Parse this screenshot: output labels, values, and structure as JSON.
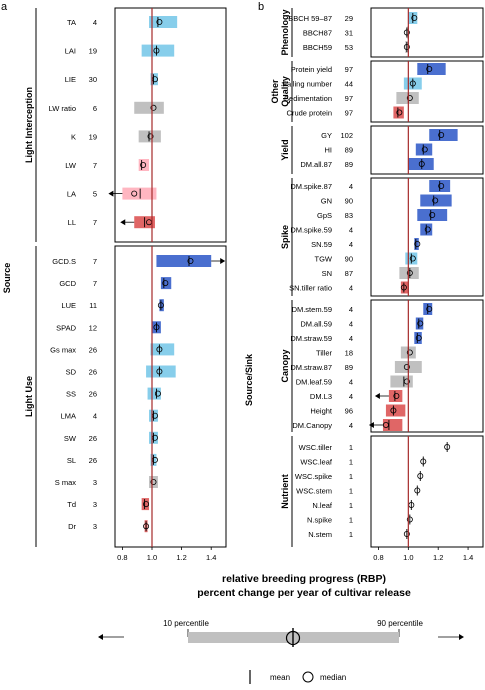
{
  "panels": [
    {
      "letter": "a",
      "source_label": "Source",
      "xticks": [
        "0.8",
        "1.0",
        "1.2",
        "1.4"
      ],
      "xlim": [
        0.75,
        1.5
      ],
      "groups": [
        {
          "label": "Light Interception",
          "rows": [
            {
              "name": "TA",
              "n": "4",
              "p10": 0.98,
              "p90": 1.17,
              "mean": 1.04,
              "median": 1.05,
              "color": "#87ceeb"
            },
            {
              "name": "LAI",
              "n": "19",
              "p10": 0.93,
              "p90": 1.15,
              "mean": 1.03,
              "median": 1.03,
              "color": "#87ceeb"
            },
            {
              "name": "LIE",
              "n": "30",
              "p10": 0.99,
              "p90": 1.04,
              "mean": 1.01,
              "median": 1.02,
              "color": "#87ceeb"
            },
            {
              "name": "LW ratio",
              "n": "6",
              "p10": 0.88,
              "p90": 1.08,
              "mean": 1.0,
              "median": 1.01,
              "color": "#c0c0c0"
            },
            {
              "name": "K",
              "n": "19",
              "p10": 0.91,
              "p90": 1.06,
              "mean": 0.98,
              "median": 0.99,
              "color": "#c0c0c0"
            },
            {
              "name": "LW",
              "n": "7",
              "p10": 0.91,
              "p90": 0.98,
              "mean": 0.93,
              "median": 0.94,
              "color": "#ffb6c1"
            },
            {
              "name": "LA",
              "n": "5",
              "p10": 0.8,
              "p90": 1.03,
              "mean": 0.92,
              "median": 0.88,
              "color": "#ffb6c1",
              "arrow": "left"
            },
            {
              "name": "LL",
              "n": "7",
              "p10": 0.88,
              "p90": 1.02,
              "mean": 0.95,
              "median": 0.98,
              "color": "#e06666",
              "arrow": "left"
            }
          ]
        },
        {
          "label": "Light Use",
          "rows": [
            {
              "name": "GCD.S",
              "n": "7",
              "p10": 1.03,
              "p90": 1.4,
              "mean": 1.25,
              "median": 1.26,
              "color": "#4a6fcf",
              "arrow": "right"
            },
            {
              "name": "GCD",
              "n": "7",
              "p10": 1.06,
              "p90": 1.13,
              "mean": 1.08,
              "median": 1.09,
              "color": "#4a6fcf"
            },
            {
              "name": "LUE",
              "n": "11",
              "p10": 1.05,
              "p90": 1.08,
              "mean": 1.06,
              "median": 1.06,
              "color": "#4a6fcf"
            },
            {
              "name": "SPAD",
              "n": "12",
              "p10": 1.0,
              "p90": 1.06,
              "mean": 1.03,
              "median": 1.03,
              "color": "#4a6fcf"
            },
            {
              "name": "Gs max",
              "n": "26",
              "p10": 0.99,
              "p90": 1.15,
              "mean": 1.05,
              "median": 1.05,
              "color": "#87ceeb"
            },
            {
              "name": "SD",
              "n": "26",
              "p10": 0.96,
              "p90": 1.16,
              "mean": 1.05,
              "median": 1.05,
              "color": "#87ceeb"
            },
            {
              "name": "SS",
              "n": "26",
              "p10": 0.97,
              "p90": 1.06,
              "mean": 1.03,
              "median": 1.04,
              "color": "#87ceeb"
            },
            {
              "name": "LMA",
              "n": "4",
              "p10": 0.98,
              "p90": 1.04,
              "mean": 1.01,
              "median": 1.02,
              "color": "#87ceeb"
            },
            {
              "name": "SW",
              "n": "26",
              "p10": 0.98,
              "p90": 1.04,
              "mean": 1.01,
              "median": 1.02,
              "color": "#87ceeb"
            },
            {
              "name": "SL",
              "n": "26",
              "p10": 0.99,
              "p90": 1.03,
              "mean": 1.01,
              "median": 1.02,
              "color": "#87ceeb"
            },
            {
              "name": "S max",
              "n": "3",
              "p10": 0.98,
              "p90": 1.04,
              "mean": 1.0,
              "median": 1.01,
              "color": "#c0c0c0"
            },
            {
              "name": "Td",
              "n": "3",
              "p10": 0.93,
              "p90": 0.98,
              "mean": 0.95,
              "median": 0.96,
              "color": "#e06666"
            },
            {
              "name": "Dr",
              "n": "3",
              "p10": 0.95,
              "p90": 0.97,
              "mean": 0.96,
              "median": 0.96,
              "color": "#e06666"
            }
          ]
        }
      ]
    },
    {
      "letter": "b",
      "source_label": "Source/Sink",
      "xticks": [
        "0.8",
        "1.0",
        "1.2",
        "1.4"
      ],
      "xlim": [
        0.75,
        1.5
      ],
      "groups": [
        {
          "label": "Phenology",
          "rows": [
            {
              "name": "BBCH 59–87",
              "n": "29",
              "p10": 1.0,
              "p90": 1.06,
              "mean": 1.03,
              "median": 1.04,
              "color": "#87ceeb"
            },
            {
              "name": "BBCH87",
              "n": "31",
              "p10": 0.99,
              "p90": 1.0,
              "mean": 0.99,
              "median": 0.99,
              "color": "#c0c0c0"
            },
            {
              "name": "BBCH59",
              "n": "53",
              "p10": 0.98,
              "p90": 0.995,
              "mean": 0.99,
              "median": 0.99,
              "color": "#c0c0c0"
            }
          ]
        },
        {
          "label": "Other Quality",
          "rows": [
            {
              "name": "Protein yield",
              "n": "97",
              "p10": 1.06,
              "p90": 1.25,
              "mean": 1.13,
              "median": 1.14,
              "color": "#4a6fcf"
            },
            {
              "name": "Falling number",
              "n": "44",
              "p10": 0.97,
              "p90": 1.09,
              "mean": 1.03,
              "median": 1.03,
              "color": "#87ceeb"
            },
            {
              "name": "Sedimentation",
              "n": "97",
              "p10": 0.92,
              "p90": 1.07,
              "mean": 1.0,
              "median": 1.01,
              "color": "#c0c0c0"
            },
            {
              "name": "Crude protein",
              "n": "97",
              "p10": 0.9,
              "p90": 0.97,
              "mean": 0.93,
              "median": 0.94,
              "color": "#e06666"
            }
          ]
        },
        {
          "label": "Yield",
          "rows": [
            {
              "name": "GY",
              "n": "102",
              "p10": 1.14,
              "p90": 1.33,
              "mean": 1.21,
              "median": 1.22,
              "color": "#4a6fcf"
            },
            {
              "name": "HI",
              "n": "89",
              "p10": 1.05,
              "p90": 1.16,
              "mean": 1.1,
              "median": 1.11,
              "color": "#4a6fcf"
            },
            {
              "name": "DM.all.87",
              "n": "89",
              "p10": 1.0,
              "p90": 1.17,
              "mean": 1.09,
              "median": 1.09,
              "color": "#4a6fcf"
            }
          ]
        },
        {
          "label": "Spike",
          "rows": [
            {
              "name": "DM.spike.87",
              "n": "4",
              "p10": 1.14,
              "p90": 1.28,
              "mean": 1.21,
              "median": 1.22,
              "color": "#4a6fcf"
            },
            {
              "name": "GN",
              "n": "90",
              "p10": 1.08,
              "p90": 1.29,
              "mean": 1.17,
              "median": 1.18,
              "color": "#4a6fcf"
            },
            {
              "name": "GpS",
              "n": "83",
              "p10": 1.06,
              "p90": 1.26,
              "mean": 1.15,
              "median": 1.16,
              "color": "#4a6fcf"
            },
            {
              "name": "DM.spike.59",
              "n": "4",
              "p10": 1.08,
              "p90": 1.16,
              "mean": 1.12,
              "median": 1.13,
              "color": "#4a6fcf"
            },
            {
              "name": "SN.59",
              "n": "4",
              "p10": 1.04,
              "p90": 1.07,
              "mean": 1.05,
              "median": 1.06,
              "color": "#4a6fcf"
            },
            {
              "name": "TGW",
              "n": "90",
              "p10": 0.98,
              "p90": 1.06,
              "mean": 1.02,
              "median": 1.03,
              "color": "#87ceeb"
            },
            {
              "name": "SN",
              "n": "87",
              "p10": 0.94,
              "p90": 1.07,
              "mean": 1.01,
              "median": 1.01,
              "color": "#c0c0c0"
            },
            {
              "name": "SN.tiller ratio",
              "n": "4",
              "p10": 0.95,
              "p90": 1.0,
              "mean": 0.97,
              "median": 0.97,
              "color": "#e06666"
            }
          ]
        },
        {
          "label": "Canopy",
          "rows": [
            {
              "name": "DM.stem.59",
              "n": "4",
              "p10": 1.1,
              "p90": 1.16,
              "mean": 1.13,
              "median": 1.14,
              "color": "#4a6fcf"
            },
            {
              "name": "DM.all.59",
              "n": "4",
              "p10": 1.05,
              "p90": 1.1,
              "mean": 1.07,
              "median": 1.08,
              "color": "#4a6fcf"
            },
            {
              "name": "DM.straw.59",
              "n": "4",
              "p10": 1.04,
              "p90": 1.09,
              "mean": 1.06,
              "median": 1.07,
              "color": "#4a6fcf"
            },
            {
              "name": "Tiller",
              "n": "18",
              "p10": 0.95,
              "p90": 1.05,
              "mean": 1.0,
              "median": 1.01,
              "color": "#c0c0c0"
            },
            {
              "name": "DM.straw.87",
              "n": "89",
              "p10": 0.91,
              "p90": 1.09,
              "mean": 1.0,
              "median": 0.99,
              "color": "#c0c0c0"
            },
            {
              "name": "DM.leaf.59",
              "n": "4",
              "p10": 0.88,
              "p90": 1.03,
              "mean": 0.97,
              "median": 0.99,
              "color": "#c0c0c0"
            },
            {
              "name": "DM.L3",
              "n": "4",
              "p10": 0.87,
              "p90": 0.96,
              "mean": 0.91,
              "median": 0.92,
              "color": "#e06666",
              "arrow": "left"
            },
            {
              "name": "Height",
              "n": "96",
              "p10": 0.85,
              "p90": 0.98,
              "mean": 0.9,
              "median": 0.9,
              "color": "#e06666"
            },
            {
              "name": "DM.Canopy",
              "n": "4",
              "p10": 0.83,
              "p90": 0.96,
              "mean": 0.87,
              "median": 0.85,
              "color": "#e06666",
              "arrow": "left"
            }
          ]
        },
        {
          "label": "Nutrient",
          "rows": [
            {
              "name": "WSC.tiller",
              "n": "1",
              "mean": 1.26,
              "median": 1.26
            },
            {
              "name": "WSC.leaf",
              "n": "1",
              "mean": 1.1,
              "median": 1.1
            },
            {
              "name": "WSC.spike",
              "n": "1",
              "mean": 1.08,
              "median": 1.08
            },
            {
              "name": "WSC.stem",
              "n": "1",
              "mean": 1.06,
              "median": 1.06
            },
            {
              "name": "N.leaf",
              "n": "1",
              "mean": 1.02,
              "median": 1.02
            },
            {
              "name": "N.spike",
              "n": "1",
              "mean": 1.01,
              "median": 1.01
            },
            {
              "name": "N.stem",
              "n": "1",
              "mean": 0.99,
              "median": 0.99
            }
          ]
        }
      ]
    }
  ],
  "xlabel_line1": "relative breeding progress (RBP)",
  "xlabel_line2": "percent change per year of cultivar release",
  "legend": {
    "p10_label": "10 percentile",
    "p90_label": "90 percentile",
    "mean_label": "mean",
    "median_label": "median",
    "bar_color": "#c0c0c0"
  },
  "reference_line_color": "#a52a2a"
}
